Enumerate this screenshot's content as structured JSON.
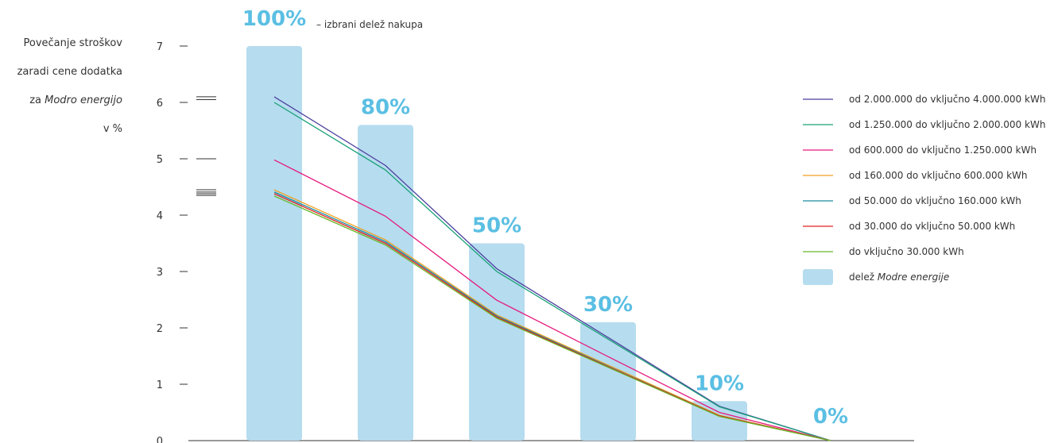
{
  "chart_data": {
    "type": "bar",
    "ylabel": [
      "Povečanje stroškov",
      "zaradi cene dodatka",
      "za Modro energijo",
      "v %"
    ],
    "ylabel_italic": "Modro energijo",
    "ylim": [
      0,
      7
    ],
    "yticks": [
      0,
      1,
      2,
      3,
      4,
      5,
      6,
      7
    ],
    "categories": [
      "100%",
      "80%",
      "50%",
      "30%",
      "10%",
      "0%"
    ],
    "first_category_note": "– izbrani delež nakupa",
    "bar_series": {
      "name": "delež Modre energije",
      "color": "#b6dcef",
      "values": [
        7.0,
        5.6,
        3.5,
        2.1,
        0.7,
        0
      ]
    },
    "series": [
      {
        "name": "od 2.000.000 do vključno 4.000.000 kWh",
        "color": "#4b3f9e",
        "values": [
          6.1,
          4.88,
          3.05,
          1.83,
          0.61,
          0
        ]
      },
      {
        "name": "od 1.250.000 do vključno 2.000.000 kWh",
        "color": "#1aa078",
        "values": [
          6.0,
          4.8,
          3.0,
          1.8,
          0.6,
          0
        ]
      },
      {
        "name": "od 600.000 do vključno 1.250.000 kWh",
        "color": "#e6197e",
        "values": [
          4.98,
          3.98,
          2.49,
          1.49,
          0.5,
          0
        ]
      },
      {
        "name": "od 160.000 do vključno 600.000 kWh",
        "color": "#f0a020",
        "values": [
          4.45,
          3.56,
          2.23,
          1.34,
          0.45,
          0
        ]
      },
      {
        "name": "od 50.000 do vključno 160.000 kWh",
        "color": "#1a8aa0",
        "values": [
          4.41,
          3.53,
          2.21,
          1.32,
          0.44,
          0
        ]
      },
      {
        "name": "od 30.000 do vključno 50.000 kWh",
        "color": "#e02020",
        "values": [
          4.38,
          3.5,
          2.19,
          1.31,
          0.44,
          0
        ]
      },
      {
        "name": "do vključno 30.000 kWh",
        "color": "#6ab82c",
        "values": [
          4.34,
          3.47,
          2.17,
          1.3,
          0.43,
          0
        ]
      }
    ],
    "legend_placement": "right",
    "grid": false,
    "axis_marker_values": [
      6.05,
      6.1,
      5.0,
      4.35,
      4.38,
      4.41,
      4.45
    ]
  }
}
